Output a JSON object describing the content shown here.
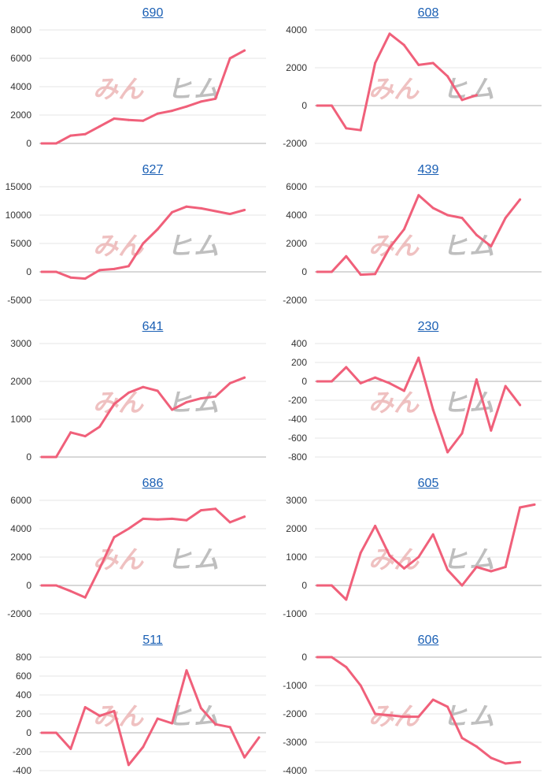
{
  "watermark": {
    "part1": "みん",
    "part2": "ヒ",
    "part3": "ム"
  },
  "line_color": "#f0607a",
  "chart_data": [
    {
      "type": "line",
      "title": "690",
      "ylim": [
        0,
        8000
      ],
      "yticks": [
        0,
        2000,
        4000,
        6000,
        8000
      ],
      "values": [
        0,
        0,
        550,
        650,
        1200,
        1750,
        1650,
        1600,
        2100,
        2300,
        2600,
        2950,
        3150,
        6000,
        6550
      ]
    },
    {
      "type": "line",
      "title": "608",
      "ylim": [
        -2000,
        4000
      ],
      "yticks": [
        -2000,
        0,
        2000,
        4000
      ],
      "values": [
        0,
        0,
        -1200,
        -1300,
        2250,
        3800,
        3200,
        2150,
        2250,
        1550,
        300,
        550
      ]
    },
    {
      "type": "line",
      "title": "627",
      "ylim": [
        -5000,
        15000
      ],
      "yticks": [
        -5000,
        0,
        5000,
        10000,
        15000
      ],
      "values": [
        0,
        0,
        -1000,
        -1200,
        300,
        500,
        1000,
        5000,
        7500,
        10500,
        11500,
        11200,
        10700,
        10200,
        10900
      ]
    },
    {
      "type": "line",
      "title": "439",
      "ylim": [
        -2000,
        6000
      ],
      "yticks": [
        -2000,
        0,
        2000,
        4000,
        6000
      ],
      "values": [
        0,
        0,
        1100,
        -200,
        -150,
        1700,
        3000,
        5400,
        4500,
        4000,
        3800,
        2600,
        1800,
        3800,
        5100
      ]
    },
    {
      "type": "line",
      "title": "641",
      "ylim": [
        0,
        3000
      ],
      "yticks": [
        0,
        1000,
        2000,
        3000
      ],
      "values": [
        0,
        0,
        650,
        550,
        800,
        1400,
        1700,
        1850,
        1750,
        1250,
        1450,
        1550,
        1600,
        1950,
        2100
      ]
    },
    {
      "type": "line",
      "title": "230",
      "ylim": [
        -800,
        400
      ],
      "yticks": [
        -800,
        -600,
        -400,
        -200,
        0,
        200,
        400
      ],
      "values": [
        0,
        0,
        150,
        -20,
        40,
        -20,
        -100,
        250,
        -300,
        -750,
        -550,
        20,
        -520,
        -50,
        -250
      ]
    },
    {
      "type": "line",
      "title": "686",
      "ylim": [
        -2000,
        6000
      ],
      "yticks": [
        -2000,
        0,
        2000,
        4000,
        6000
      ],
      "values": [
        0,
        0,
        -400,
        -850,
        1200,
        3400,
        4000,
        4700,
        4650,
        4700,
        4600,
        5300,
        5400,
        4450,
        4850
      ]
    },
    {
      "type": "line",
      "title": "605",
      "ylim": [
        -1000,
        3000
      ],
      "yticks": [
        -1000,
        0,
        1000,
        2000,
        3000
      ],
      "values": [
        0,
        0,
        -500,
        1150,
        2100,
        1050,
        600,
        1000,
        1800,
        550,
        0,
        650,
        500,
        650,
        2750,
        2850
      ]
    },
    {
      "type": "line",
      "title": "511",
      "ylim": [
        -400,
        800
      ],
      "yticks": [
        -400,
        -200,
        0,
        200,
        400,
        600,
        800
      ],
      "values": [
        0,
        0,
        -170,
        270,
        180,
        230,
        -340,
        -150,
        150,
        100,
        660,
        260,
        90,
        60,
        -260,
        -50
      ]
    },
    {
      "type": "line",
      "title": "606",
      "ylim": [
        -4000,
        0
      ],
      "yticks": [
        -4000,
        -3000,
        -2000,
        -1000,
        0
      ],
      "values": [
        0,
        0,
        -350,
        -1000,
        -2000,
        -2050,
        -2100,
        -2100,
        -1500,
        -1750,
        -2850,
        -3150,
        -3550,
        -3750,
        -3700
      ]
    }
  ]
}
